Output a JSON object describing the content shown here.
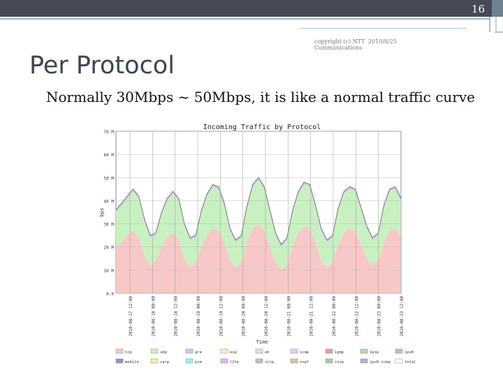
{
  "header": {
    "page_number": "16"
  },
  "footer_meta": {
    "copyright_line1": "copyright (c) NTT",
    "copyright_line2": "Communications",
    "date": "2010/8/25"
  },
  "slide": {
    "title": "Per Protocol",
    "subtitle": "Normally 30Mbps ~ 50Mbps, it is like a normal traffic curve"
  },
  "colors": {
    "tcp": "#f8c8c8",
    "udp": "#c8f0c0",
    "gre": "#c8c8f0",
    "esp": "#f0f0c8",
    "topbar": "#464a57"
  },
  "chart_data": {
    "type": "area",
    "title": "Incoming Traffic by Protocol",
    "ylabel": "bps",
    "xlabel": "Time",
    "ylim": [
      0,
      70
    ],
    "y_tick_labels": [
      "0.0",
      "10 M",
      "20 M",
      "30 M",
      "40 M",
      "50 M",
      "60 M",
      "70 M"
    ],
    "y_tick_values": [
      0,
      10,
      20,
      30,
      40,
      50,
      60,
      70
    ],
    "x_tick_labels": [
      "2010-08-17 12:00",
      "2010-08-18 00:00",
      "2010-08-18 12:00",
      "2010-08-19 00:00",
      "2010-08-19 12:00",
      "2010-08-20 00:00",
      "2010-08-20 12:00",
      "2010-08-21 00:00",
      "2010-08-21 12:00",
      "2010-08-22 00:00",
      "2010-08-22 12:00",
      "2010-08-23 00:00",
      "2010-08-23 12:00"
    ],
    "grid": true,
    "legend_position": "bottom",
    "x": [
      0,
      0.25,
      0.5,
      0.75,
      1,
      1.25,
      1.5,
      1.75,
      2,
      2.25,
      2.5,
      2.75,
      3,
      3.25,
      3.5,
      3.75,
      4,
      4.25,
      4.5,
      4.75,
      5,
      5.25,
      5.5,
      5.75,
      6,
      6.25,
      6.5,
      6.75,
      7,
      7.25,
      7.5,
      7.75,
      8,
      8.25,
      8.5,
      8.75,
      9,
      9.25,
      9.5,
      9.75,
      10,
      10.25,
      10.5,
      10.75,
      11,
      11.25,
      11.5,
      11.75,
      12,
      12.25,
      12.5
    ],
    "series": [
      {
        "name": "tcp",
        "color": "#f8c8c8",
        "values": [
          20,
          22,
          25,
          27,
          24,
          16,
          12,
          14,
          20,
          24,
          26,
          23,
          15,
          11,
          13,
          20,
          25,
          28,
          27,
          22,
          14,
          11,
          13,
          22,
          28,
          30,
          27,
          20,
          13,
          10,
          12,
          20,
          26,
          29,
          28,
          22,
          14,
          11,
          13,
          21,
          26,
          28,
          27,
          21,
          15,
          12,
          14,
          22,
          27,
          28,
          24
        ]
      },
      {
        "name": "udp",
        "color": "#c8f0c0",
        "values": [
          15,
          16,
          16,
          17,
          17,
          15,
          12,
          11,
          14,
          16,
          17,
          17,
          14,
          12,
          11,
          15,
          17,
          18,
          18,
          16,
          13,
          11,
          11,
          15,
          18,
          19,
          18,
          15,
          12,
          10,
          11,
          15,
          17,
          18,
          18,
          15,
          13,
          11,
          11,
          15,
          17,
          17,
          17,
          15,
          13,
          11,
          11,
          15,
          17,
          17,
          16
        ]
      },
      {
        "name": "gre",
        "color": "#c8c8f0",
        "values": [
          1,
          1,
          1,
          1,
          1,
          1,
          1,
          1,
          1,
          1,
          1,
          1,
          1,
          1,
          1,
          1,
          1,
          1,
          1,
          1,
          1,
          1,
          1,
          1,
          1,
          1,
          1,
          1,
          1,
          1,
          1,
          1,
          1,
          1,
          1,
          1,
          1,
          1,
          1,
          1,
          1,
          1,
          1,
          1,
          1,
          1,
          1,
          1,
          1,
          1,
          1
        ]
      }
    ],
    "legend": [
      "tcp",
      "udp",
      "gre",
      "esp",
      "ah",
      "icmp",
      "igmp",
      "ipip",
      "ipv6",
      "mobile",
      "carp",
      "pim",
      "l2tp",
      "sctp",
      "ospf",
      "rsvp",
      "ipv6-icmp",
      "total"
    ]
  }
}
